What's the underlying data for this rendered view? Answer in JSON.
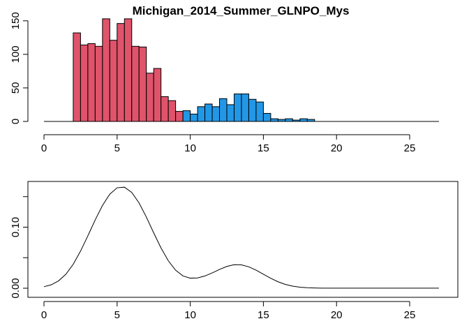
{
  "chart_data": [
    {
      "type": "bar",
      "title": "Michigan_2014_Summer_GLNPO_Mys",
      "xlabel": "",
      "ylabel": "",
      "xlim": [
        0,
        27
      ],
      "ylim": [
        0,
        160
      ],
      "x_ticks": [
        0,
        5,
        10,
        15,
        20,
        25
      ],
      "y_ticks": [
        0,
        50,
        100,
        150
      ],
      "bin_width": 0.5,
      "colors": {
        "group_1": "#DF536B",
        "group_2": "#2297E6"
      },
      "series": [
        {
          "color_key": "group_1",
          "bins": [
            {
              "x0": 2.0,
              "value": 132
            },
            {
              "x0": 2.5,
              "value": 114
            },
            {
              "x0": 3.0,
              "value": 116
            },
            {
              "x0": 3.5,
              "value": 112
            },
            {
              "x0": 4.0,
              "value": 153
            },
            {
              "x0": 4.5,
              "value": 121
            },
            {
              "x0": 5.0,
              "value": 146
            },
            {
              "x0": 5.5,
              "value": 153
            },
            {
              "x0": 6.0,
              "value": 112
            },
            {
              "x0": 6.5,
              "value": 111
            },
            {
              "x0": 7.0,
              "value": 72
            },
            {
              "x0": 7.5,
              "value": 79
            },
            {
              "x0": 8.0,
              "value": 37
            },
            {
              "x0": 8.5,
              "value": 31
            },
            {
              "x0": 9.0,
              "value": 15
            },
            {
              "x0": 9.5,
              "value": 5
            }
          ]
        },
        {
          "color_key": "group_2",
          "bins": [
            {
              "x0": 9.5,
              "value": 16
            },
            {
              "x0": 10.0,
              "value": 11
            },
            {
              "x0": 10.5,
              "value": 22
            },
            {
              "x0": 11.0,
              "value": 26
            },
            {
              "x0": 11.5,
              "value": 22
            },
            {
              "x0": 12.0,
              "value": 34
            },
            {
              "x0": 12.5,
              "value": 25
            },
            {
              "x0": 13.0,
              "value": 41
            },
            {
              "x0": 13.5,
              "value": 41
            },
            {
              "x0": 14.0,
              "value": 33
            },
            {
              "x0": 14.5,
              "value": 29
            },
            {
              "x0": 15.0,
              "value": 12
            },
            {
              "x0": 15.5,
              "value": 4
            },
            {
              "x0": 16.0,
              "value": 3
            },
            {
              "x0": 16.5,
              "value": 4
            },
            {
              "x0": 17.0,
              "value": 2
            },
            {
              "x0": 17.5,
              "value": 4
            },
            {
              "x0": 18.0,
              "value": 3
            }
          ]
        }
      ],
      "baseline": {
        "from": 0,
        "to": 27
      }
    },
    {
      "type": "line",
      "title": "",
      "xlabel": "",
      "ylabel": "",
      "xlim": [
        0,
        27
      ],
      "ylim": [
        0,
        0.17
      ],
      "x_ticks": [
        0,
        5,
        10,
        15,
        20,
        25
      ],
      "y_ticks": [
        0.0,
        0.05,
        0.1,
        0.15
      ],
      "y_tick_labels": [
        "0.00",
        "",
        "0.10",
        ""
      ],
      "line_color": "#000000",
      "points": [
        [
          0.0,
          0.0025
        ],
        [
          0.5,
          0.0057
        ],
        [
          1.0,
          0.0121
        ],
        [
          1.5,
          0.023
        ],
        [
          2.0,
          0.0393
        ],
        [
          2.5,
          0.0608
        ],
        [
          3.0,
          0.0858
        ],
        [
          3.5,
          0.1118
        ],
        [
          4.0,
          0.1356
        ],
        [
          4.5,
          0.154
        ],
        [
          5.0,
          0.1645
        ],
        [
          5.5,
          0.1655
        ],
        [
          6.0,
          0.1569
        ],
        [
          6.5,
          0.1397
        ],
        [
          7.0,
          0.1165
        ],
        [
          7.5,
          0.0907
        ],
        [
          8.0,
          0.066
        ],
        [
          8.5,
          0.045
        ],
        [
          9.0,
          0.0295
        ],
        [
          9.5,
          0.0202
        ],
        [
          10.0,
          0.0165
        ],
        [
          10.5,
          0.0169
        ],
        [
          11.0,
          0.0201
        ],
        [
          11.5,
          0.0251
        ],
        [
          12.0,
          0.0308
        ],
        [
          12.5,
          0.0357
        ],
        [
          13.0,
          0.0385
        ],
        [
          13.5,
          0.0383
        ],
        [
          14.0,
          0.0351
        ],
        [
          14.5,
          0.0297
        ],
        [
          15.0,
          0.023
        ],
        [
          15.5,
          0.0163
        ],
        [
          16.0,
          0.0106
        ],
        [
          16.5,
          0.0063
        ],
        [
          17.0,
          0.0034
        ],
        [
          17.5,
          0.0017
        ],
        [
          18.0,
          0.0008
        ],
        [
          18.5,
          0.0004
        ],
        [
          19.0,
          0.0002
        ],
        [
          20.0,
          0.0001
        ],
        [
          21.0,
          0.0001
        ],
        [
          22.0,
          0.0001
        ],
        [
          23.0,
          0.0001
        ],
        [
          24.0,
          0.0001
        ],
        [
          25.0,
          0.0001
        ],
        [
          26.0,
          0.0001
        ],
        [
          27.0,
          0.0001
        ]
      ]
    }
  ]
}
